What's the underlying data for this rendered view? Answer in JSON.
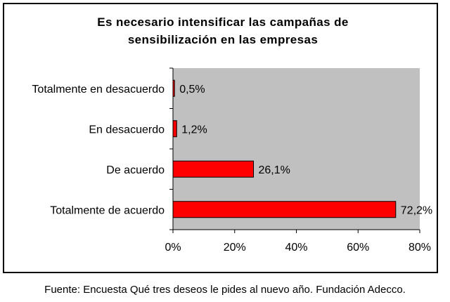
{
  "chart_data": {
    "type": "bar",
    "orientation": "horizontal",
    "title_lines": [
      "Es necesario intensificar las campañas de",
      "sensibilización en las empresas"
    ],
    "categories": [
      "Totalmente en desacuerdo",
      "En desacuerdo",
      "De acuerdo",
      "Totalmente de acuerdo"
    ],
    "values": [
      0.5,
      1.2,
      26.1,
      72.2
    ],
    "value_labels": [
      "0,5%",
      "1,2%",
      "26,1%",
      "72,2%"
    ],
    "xlim": [
      0,
      80
    ],
    "xticks": [
      0,
      20,
      40,
      60,
      80
    ],
    "xtick_labels": [
      "0%",
      "20%",
      "40%",
      "60%",
      "80%"
    ],
    "grid": false,
    "legend": "none",
    "colors": {
      "bar": "#ff0000",
      "plot_area": "#c0c0c0"
    }
  },
  "source": "Fuente: Encuesta Qué tres deseos le pides al nuevo año. Fundación Adecco."
}
